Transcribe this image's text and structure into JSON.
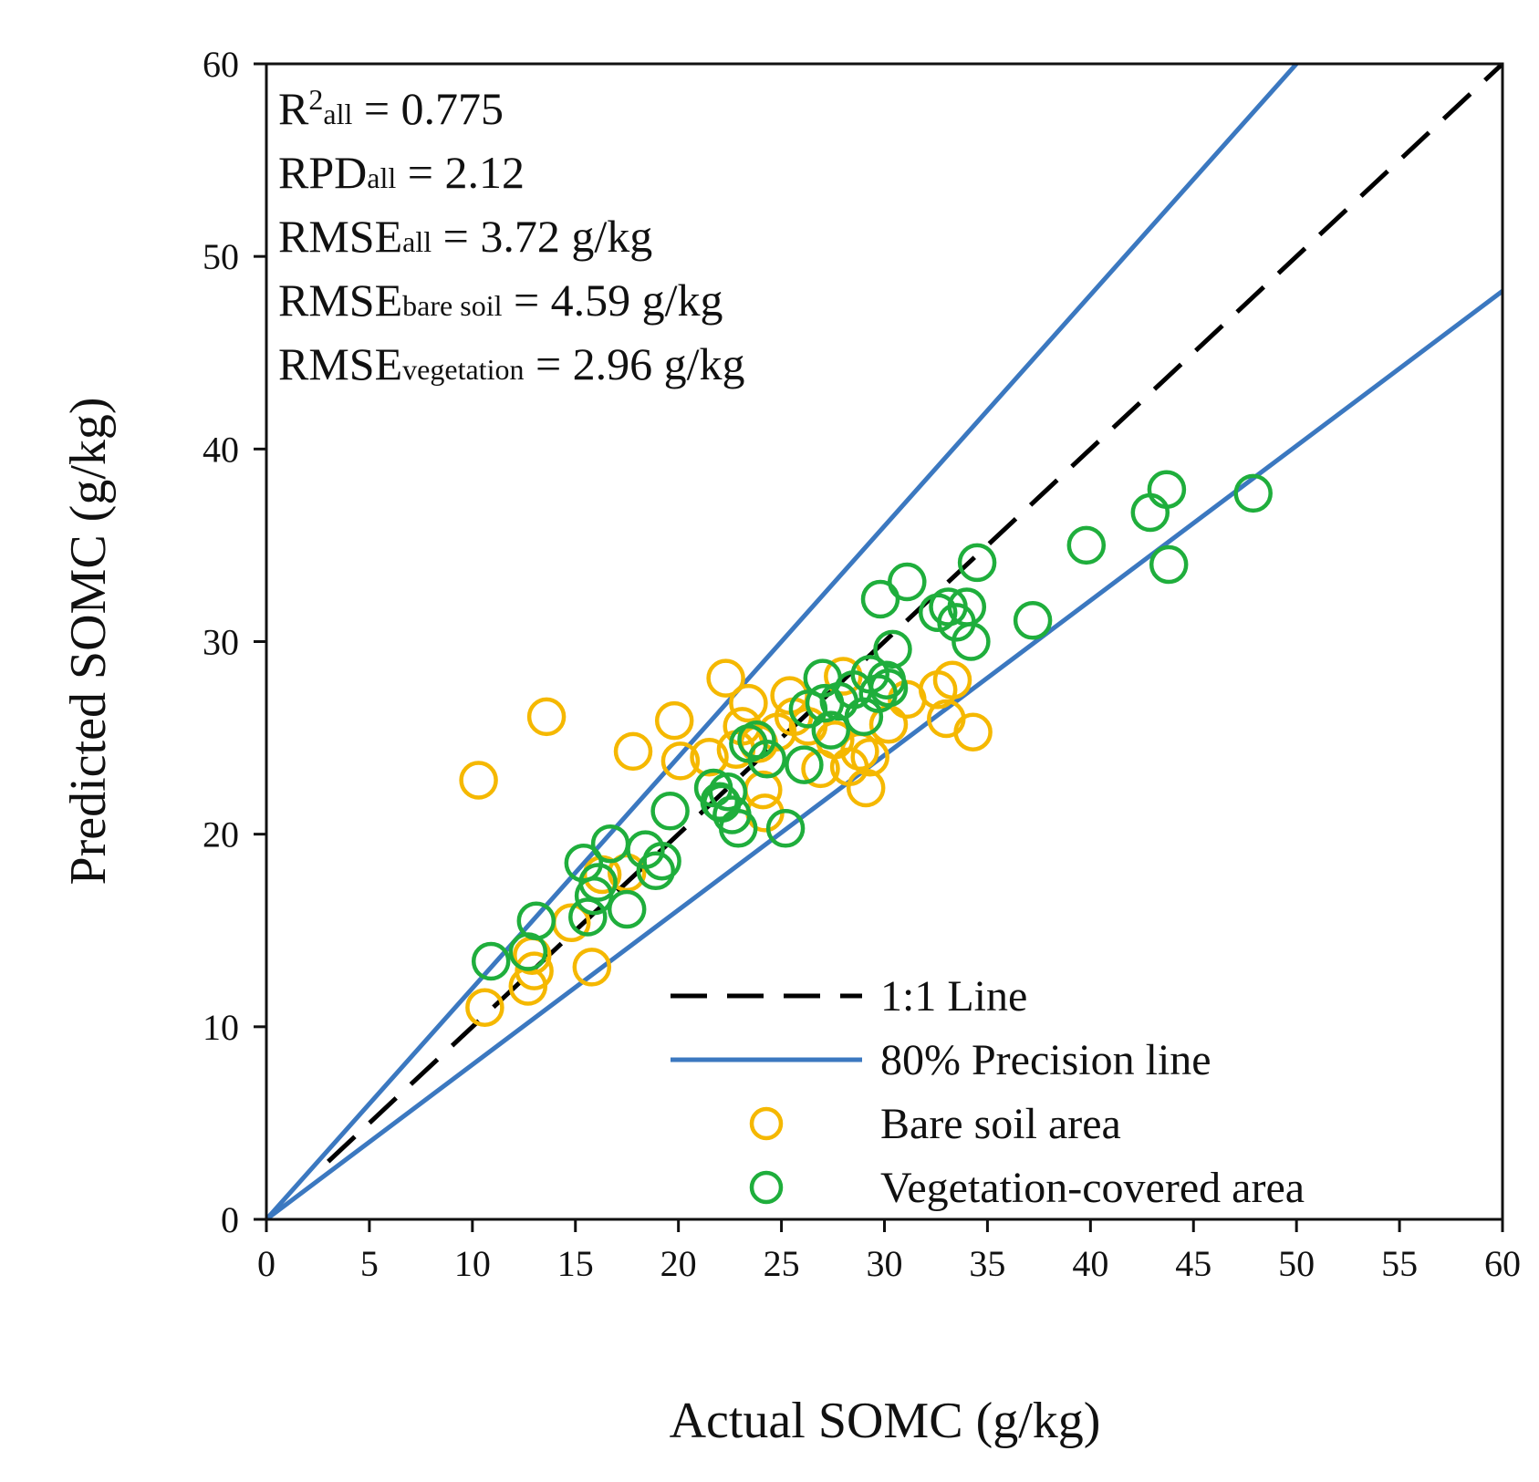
{
  "chart_data": {
    "type": "scatter",
    "title": "",
    "xlabel": "Actual SOMC (g/kg)",
    "ylabel": "Predicted SOMC (g/kg)",
    "xlim": [
      0,
      60
    ],
    "ylim": [
      0,
      60
    ],
    "xticks": [
      0,
      5,
      10,
      15,
      20,
      25,
      30,
      35,
      40,
      45,
      50,
      55,
      60
    ],
    "yticks": [
      0,
      10,
      20,
      30,
      40,
      50,
      60
    ],
    "grid": false,
    "legend_position": "bottom-right",
    "stats": [
      {
        "main": "R",
        "sup": "2",
        "sub": "all",
        "rest": " = 0.775"
      },
      {
        "main": "RPD",
        "sub": "all",
        "rest": " = 2.12"
      },
      {
        "main": "RMSE",
        "sub": "all",
        "rest": " = 3.72 g/kg"
      },
      {
        "main": "RMSE",
        "sub": "bare soil",
        "rest": " = 4.59 g/kg"
      },
      {
        "main": "RMSE",
        "sub": "vegetation",
        "rest": " = 2.96 g/kg"
      }
    ],
    "lines": [
      {
        "name": "1:1 Line",
        "style": "dashed",
        "color": "#000000",
        "x": [
          3,
          60
        ],
        "y": [
          3,
          60
        ]
      },
      {
        "name": "80% Precision line",
        "style": "solid",
        "color": "#3b78c0",
        "x": [
          0,
          50
        ],
        "y": [
          0,
          60
        ]
      },
      {
        "name": "80% Precision line (lower)",
        "style": "solid",
        "color": "#3b78c0",
        "x": [
          0,
          60
        ],
        "y": [
          0,
          48.2
        ]
      }
    ],
    "series": [
      {
        "name": "Bare soil area",
        "color": "#f5b800",
        "x": [
          10.3,
          10.6,
          12.7,
          13.0,
          13.6,
          15.8,
          16.3,
          17.5,
          17.8,
          19.8,
          20.1,
          21.5,
          22.3,
          22.8,
          23.1,
          23.4,
          23.9,
          24.2,
          24.8,
          25.4,
          25.6,
          26.3,
          26.9,
          27.6,
          28.3,
          28.8,
          29.1,
          29.3,
          30.2,
          32.6,
          33.0,
          33.3,
          34.3,
          12.9,
          14.8,
          24.1,
          28.0,
          31.1
        ],
        "y": [
          22.8,
          11.0,
          12.1,
          12.9,
          26.1,
          13.1,
          17.9,
          18.0,
          24.3,
          25.9,
          23.8,
          24.0,
          28.1,
          24.4,
          25.6,
          26.8,
          24.7,
          21.1,
          25.3,
          27.2,
          26.1,
          25.6,
          23.4,
          24.9,
          23.5,
          24.3,
          22.4,
          24.0,
          25.7,
          27.5,
          26.0,
          28.0,
          25.3,
          13.7,
          15.4,
          22.3,
          28.2,
          27.0
        ]
      },
      {
        "name": "Vegetation-covered area",
        "color": "#1fae3c",
        "x": [
          10.9,
          12.7,
          13.1,
          15.4,
          15.6,
          15.9,
          16.1,
          16.7,
          17.5,
          18.4,
          18.9,
          19.2,
          19.6,
          21.7,
          22.1,
          22.4,
          22.6,
          22.9,
          23.4,
          23.8,
          25.2,
          26.1,
          26.3,
          27.0,
          27.4,
          27.8,
          28.5,
          29.0,
          29.3,
          29.7,
          30.1,
          30.4,
          31.1,
          32.6,
          33.5,
          34.0,
          34.2,
          34.5,
          37.2,
          39.8,
          42.9,
          43.7,
          43.8,
          47.9,
          22.0,
          24.3,
          27.1,
          29.8,
          30.2,
          33.1
        ],
        "y": [
          13.4,
          13.9,
          15.5,
          18.5,
          15.7,
          16.8,
          17.5,
          19.5,
          16.1,
          19.2,
          18.1,
          18.6,
          21.2,
          22.4,
          21.6,
          22.2,
          21.0,
          20.3,
          24.7,
          24.9,
          20.3,
          23.6,
          26.5,
          28.1,
          25.4,
          26.9,
          27.5,
          26.1,
          28.3,
          27.3,
          28.0,
          29.6,
          33.1,
          31.5,
          31.0,
          31.8,
          30.0,
          34.1,
          31.1,
          35.0,
          36.7,
          37.9,
          34.0,
          37.7,
          21.7,
          23.9,
          26.8,
          32.2,
          27.6,
          31.8
        ]
      }
    ]
  }
}
